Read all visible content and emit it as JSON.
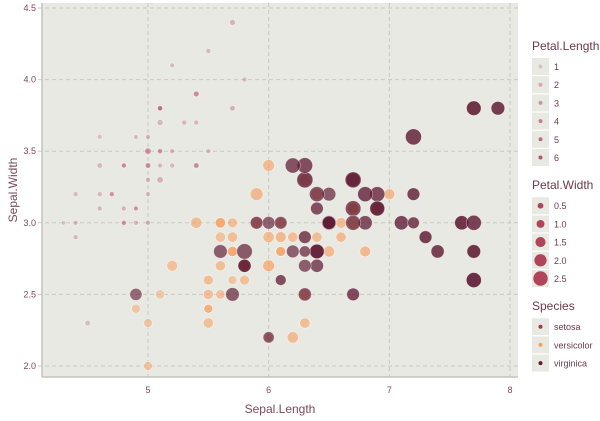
{
  "chart_data": {
    "type": "scatter",
    "title": "",
    "xlabel": "Sepal.Length",
    "ylabel": "Sepal.Width",
    "xlim": [
      4.2,
      8.05
    ],
    "ylim": [
      1.88,
      4.52
    ],
    "xticks": [
      5,
      6,
      7,
      8
    ],
    "xtick_labels": [
      "5",
      "6",
      "7",
      "8"
    ],
    "yticks": [
      2.0,
      2.5,
      3.0,
      3.5,
      4.0,
      4.5
    ],
    "ytick_labels": [
      "2.0",
      "2.5",
      "3.0",
      "3.5",
      "4.0",
      "4.5"
    ],
    "grid": true,
    "legend_position": "right",
    "encodings": {
      "x": "Sepal.Length",
      "y": "Sepal.Width",
      "alpha": "Petal.Length",
      "size": "Petal.Width",
      "color": "Species"
    },
    "species_colors": {
      "setosa": "#a8324a",
      "versicolor": "#f5a062",
      "virginica": "#5e1a33"
    },
    "series": [
      {
        "name": "setosa",
        "points": [
          [
            5.1,
            3.5,
            1.4,
            0.2
          ],
          [
            4.9,
            3.0,
            1.4,
            0.2
          ],
          [
            4.7,
            3.2,
            1.3,
            0.2
          ],
          [
            4.6,
            3.1,
            1.5,
            0.2
          ],
          [
            5.0,
            3.6,
            1.4,
            0.2
          ],
          [
            5.4,
            3.9,
            1.7,
            0.4
          ],
          [
            4.6,
            3.4,
            1.4,
            0.3
          ],
          [
            5.0,
            3.4,
            1.5,
            0.2
          ],
          [
            4.4,
            2.9,
            1.4,
            0.2
          ],
          [
            4.9,
            3.1,
            1.5,
            0.1
          ],
          [
            5.4,
            3.7,
            1.5,
            0.2
          ],
          [
            4.8,
            3.4,
            1.6,
            0.2
          ],
          [
            4.8,
            3.0,
            1.4,
            0.1
          ],
          [
            4.3,
            3.0,
            1.1,
            0.1
          ],
          [
            5.8,
            4.0,
            1.2,
            0.2
          ],
          [
            5.7,
            4.4,
            1.5,
            0.4
          ],
          [
            5.4,
            3.9,
            1.3,
            0.4
          ],
          [
            5.1,
            3.5,
            1.4,
            0.3
          ],
          [
            5.7,
            3.8,
            1.7,
            0.3
          ],
          [
            5.1,
            3.8,
            1.5,
            0.3
          ],
          [
            5.4,
            3.4,
            1.7,
            0.2
          ],
          [
            5.1,
            3.7,
            1.5,
            0.4
          ],
          [
            4.6,
            3.6,
            1.0,
            0.2
          ],
          [
            5.1,
            3.3,
            1.7,
            0.5
          ],
          [
            4.8,
            3.4,
            1.9,
            0.2
          ],
          [
            5.0,
            3.0,
            1.6,
            0.2
          ],
          [
            5.0,
            3.4,
            1.6,
            0.4
          ],
          [
            5.2,
            3.5,
            1.5,
            0.2
          ],
          [
            5.2,
            3.4,
            1.4,
            0.2
          ],
          [
            4.7,
            3.2,
            1.6,
            0.2
          ],
          [
            4.8,
            3.1,
            1.6,
            0.2
          ],
          [
            5.4,
            3.4,
            1.5,
            0.4
          ],
          [
            5.2,
            4.1,
            1.5,
            0.1
          ],
          [
            5.5,
            4.2,
            1.4,
            0.2
          ],
          [
            4.9,
            3.1,
            1.5,
            0.2
          ],
          [
            5.0,
            3.2,
            1.2,
            0.2
          ],
          [
            5.5,
            3.5,
            1.3,
            0.2
          ],
          [
            4.9,
            3.6,
            1.4,
            0.1
          ],
          [
            4.4,
            3.0,
            1.3,
            0.2
          ],
          [
            5.1,
            3.4,
            1.5,
            0.2
          ],
          [
            5.0,
            3.5,
            1.3,
            0.3
          ],
          [
            4.5,
            2.3,
            1.3,
            0.3
          ],
          [
            4.4,
            3.2,
            1.3,
            0.2
          ],
          [
            5.0,
            3.5,
            1.6,
            0.6
          ],
          [
            5.1,
            3.8,
            1.9,
            0.4
          ],
          [
            4.8,
            3.0,
            1.4,
            0.3
          ],
          [
            5.1,
            3.8,
            1.6,
            0.2
          ],
          [
            4.6,
            3.2,
            1.4,
            0.2
          ],
          [
            5.3,
            3.7,
            1.5,
            0.2
          ],
          [
            5.0,
            3.3,
            1.4,
            0.2
          ]
        ]
      },
      {
        "name": "versicolor",
        "points": [
          [
            7.0,
            3.2,
            4.7,
            1.4
          ],
          [
            6.4,
            3.2,
            4.5,
            1.5
          ],
          [
            6.9,
            3.1,
            4.9,
            1.5
          ],
          [
            5.5,
            2.3,
            4.0,
            1.3
          ],
          [
            6.5,
            2.8,
            4.6,
            1.5
          ],
          [
            5.7,
            2.8,
            4.5,
            1.3
          ],
          [
            6.3,
            3.3,
            4.7,
            1.6
          ],
          [
            4.9,
            2.4,
            3.3,
            1.0
          ],
          [
            6.6,
            2.9,
            4.6,
            1.3
          ],
          [
            5.2,
            2.7,
            3.9,
            1.4
          ],
          [
            5.0,
            2.0,
            3.5,
            1.0
          ],
          [
            5.9,
            3.0,
            4.2,
            1.5
          ],
          [
            6.0,
            2.2,
            4.0,
            1.0
          ],
          [
            6.1,
            2.9,
            4.7,
            1.4
          ],
          [
            5.6,
            2.9,
            3.6,
            1.3
          ],
          [
            6.7,
            3.1,
            4.4,
            1.4
          ],
          [
            5.6,
            3.0,
            4.5,
            1.5
          ],
          [
            5.8,
            2.7,
            4.1,
            1.0
          ],
          [
            6.2,
            2.2,
            4.5,
            1.5
          ],
          [
            5.6,
            2.5,
            3.9,
            1.1
          ],
          [
            5.9,
            3.2,
            4.8,
            1.8
          ],
          [
            6.1,
            2.8,
            4.0,
            1.3
          ],
          [
            6.3,
            2.5,
            4.9,
            1.5
          ],
          [
            6.1,
            2.8,
            4.7,
            1.2
          ],
          [
            6.4,
            2.9,
            4.3,
            1.3
          ],
          [
            6.6,
            3.0,
            4.4,
            1.4
          ],
          [
            6.8,
            2.8,
            4.8,
            1.4
          ],
          [
            6.7,
            3.0,
            5.0,
            1.7
          ],
          [
            6.0,
            2.9,
            4.5,
            1.5
          ],
          [
            5.7,
            2.6,
            3.5,
            1.0
          ],
          [
            5.5,
            2.4,
            3.8,
            1.1
          ],
          [
            5.5,
            2.4,
            3.7,
            1.0
          ],
          [
            5.8,
            2.7,
            3.9,
            1.2
          ],
          [
            6.0,
            2.7,
            5.1,
            1.6
          ],
          [
            5.4,
            3.0,
            4.5,
            1.5
          ],
          [
            6.0,
            3.4,
            4.5,
            1.6
          ],
          [
            6.7,
            3.1,
            4.7,
            1.5
          ],
          [
            6.3,
            2.3,
            4.4,
            1.3
          ],
          [
            5.6,
            3.0,
            4.1,
            1.3
          ],
          [
            5.5,
            2.5,
            4.0,
            1.3
          ],
          [
            5.5,
            2.6,
            4.4,
            1.2
          ],
          [
            6.1,
            3.0,
            4.6,
            1.4
          ],
          [
            5.8,
            2.6,
            4.0,
            1.2
          ],
          [
            5.0,
            2.3,
            3.3,
            1.0
          ],
          [
            5.6,
            2.7,
            4.2,
            1.3
          ],
          [
            5.7,
            3.0,
            4.2,
            1.2
          ],
          [
            5.7,
            2.9,
            4.2,
            1.3
          ],
          [
            6.2,
            2.9,
            4.3,
            1.3
          ],
          [
            5.1,
            2.5,
            3.0,
            1.1
          ],
          [
            5.7,
            2.8,
            4.1,
            1.3
          ]
        ]
      },
      {
        "name": "virginica",
        "points": [
          [
            6.3,
            3.3,
            6.0,
            2.5
          ],
          [
            5.8,
            2.7,
            5.1,
            1.9
          ],
          [
            7.1,
            3.0,
            5.9,
            2.1
          ],
          [
            6.3,
            2.9,
            5.6,
            1.8
          ],
          [
            6.5,
            3.0,
            5.8,
            2.2
          ],
          [
            7.6,
            3.0,
            6.6,
            2.1
          ],
          [
            4.9,
            2.5,
            4.5,
            1.7
          ],
          [
            7.3,
            2.9,
            6.3,
            1.8
          ],
          [
            6.7,
            2.5,
            5.8,
            1.8
          ],
          [
            7.2,
            3.6,
            6.1,
            2.5
          ],
          [
            6.5,
            3.2,
            5.1,
            2.0
          ],
          [
            6.4,
            2.7,
            5.3,
            1.9
          ],
          [
            6.8,
            3.0,
            5.5,
            2.1
          ],
          [
            5.7,
            2.5,
            5.0,
            2.0
          ],
          [
            5.8,
            2.8,
            5.1,
            2.4
          ],
          [
            6.4,
            3.2,
            5.3,
            2.3
          ],
          [
            6.5,
            3.0,
            5.5,
            1.8
          ],
          [
            7.7,
            3.8,
            6.7,
            2.2
          ],
          [
            7.7,
            2.6,
            6.9,
            2.3
          ],
          [
            6.0,
            2.2,
            5.0,
            1.5
          ],
          [
            6.9,
            3.2,
            5.7,
            2.3
          ],
          [
            5.6,
            2.8,
            4.9,
            2.0
          ],
          [
            7.7,
            2.8,
            6.7,
            2.0
          ],
          [
            6.3,
            2.7,
            4.9,
            1.8
          ],
          [
            6.7,
            3.3,
            5.7,
            2.1
          ],
          [
            7.2,
            3.2,
            6.0,
            1.8
          ],
          [
            6.2,
            2.8,
            4.8,
            1.8
          ],
          [
            6.1,
            3.0,
            4.9,
            1.8
          ],
          [
            6.4,
            2.8,
            5.6,
            2.1
          ],
          [
            7.2,
            3.0,
            5.8,
            1.6
          ],
          [
            7.4,
            2.8,
            6.1,
            1.9
          ],
          [
            7.9,
            3.8,
            6.4,
            2.0
          ],
          [
            6.4,
            2.8,
            5.6,
            2.2
          ],
          [
            6.3,
            2.8,
            5.1,
            1.5
          ],
          [
            6.1,
            2.6,
            5.6,
            1.4
          ],
          [
            7.7,
            3.0,
            6.1,
            2.3
          ],
          [
            6.3,
            3.4,
            5.6,
            2.4
          ],
          [
            6.4,
            3.1,
            5.5,
            1.8
          ],
          [
            6.0,
            3.0,
            4.8,
            1.8
          ],
          [
            6.9,
            3.1,
            5.4,
            2.1
          ],
          [
            6.7,
            3.1,
            5.6,
            2.4
          ],
          [
            6.9,
            3.1,
            5.1,
            2.3
          ],
          [
            5.8,
            2.7,
            5.1,
            1.9
          ],
          [
            6.8,
            3.2,
            5.9,
            2.3
          ],
          [
            6.7,
            3.3,
            5.7,
            2.5
          ],
          [
            6.7,
            3.0,
            5.2,
            2.3
          ],
          [
            6.3,
            2.5,
            5.0,
            1.9
          ],
          [
            6.5,
            3.0,
            5.2,
            2.0
          ],
          [
            6.2,
            3.4,
            5.4,
            2.3
          ],
          [
            5.9,
            3.0,
            5.1,
            1.8
          ]
        ]
      }
    ],
    "legends": [
      {
        "title": "Petal.Length",
        "type": "alpha",
        "entries": [
          "1",
          "2",
          "3",
          "4",
          "5",
          "6"
        ],
        "values": [
          1,
          2,
          3,
          4,
          5,
          6
        ]
      },
      {
        "title": "Petal.Width",
        "type": "size",
        "entries": [
          "0.5",
          "1.0",
          "1.5",
          "2.0",
          "2.5"
        ],
        "values": [
          0.5,
          1.0,
          1.5,
          2.0,
          2.5
        ]
      },
      {
        "title": "Species",
        "type": "color",
        "entries": [
          "setosa",
          "versicolor",
          "virginica"
        ]
      }
    ]
  },
  "theme": {
    "panel_bg": "#e8e9e3",
    "grid_color": "#c9c9c2",
    "axis_text": "#7a4a5a",
    "legend_key_bg": "#e8e9e3"
  }
}
